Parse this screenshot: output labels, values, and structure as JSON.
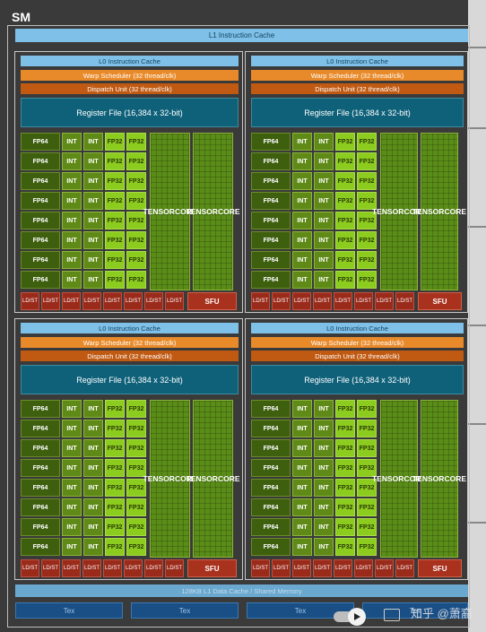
{
  "sm_title": "SM",
  "l1_instruction_cache": "L1 Instruction Cache",
  "processing_block": {
    "l0_cache": "L0 Instruction Cache",
    "warp_scheduler": "Warp Scheduler (32 thread/clk)",
    "dispatch_unit": "Dispatch Unit (32 thread/clk)",
    "register_file": "Register File (16,384 x 32-bit)",
    "fp64_label": "FP64",
    "int_label": "INT",
    "fp32_label": "FP32",
    "tensor_core_line1": "TENSOR",
    "tensor_core_line2": "CORE",
    "ldst_line1": "LD/",
    "ldst_line2": "ST",
    "sfu_label": "SFU"
  },
  "l1_data_cache": "128KB L1 Data Cache / Shared Memory",
  "tex_units": [
    "Tex",
    "Tex",
    "Tex",
    "Tex"
  ],
  "watermark": "知乎 @萧裔",
  "colors": {
    "cache_blue": "#7ec0e8",
    "warp_orange": "#e88a2a",
    "dispatch_orange": "#c05a12",
    "register_teal": "#0e6179",
    "fp64_green": "#3d5f0e",
    "int_green": "#5f8a17",
    "fp32_green": "#8ccc1e",
    "ldst_red": "#9a2a1a",
    "tex_blue": "#1a4f86"
  },
  "icons": [
    "play-icon",
    "toggle-switch-icon",
    "keyboard-icon"
  ]
}
